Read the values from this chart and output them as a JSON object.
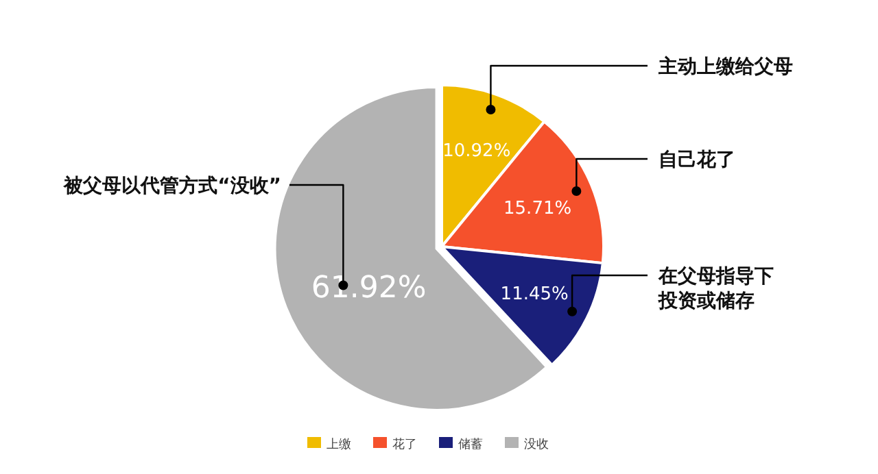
{
  "chart_data": {
    "type": "pie",
    "categories": [
      "上缴",
      "花了",
      "储蓄",
      "没收"
    ],
    "values": [
      10.92,
      15.71,
      11.45,
      61.92
    ],
    "colors": [
      "#f0bc00",
      "#f5512c",
      "#1a1f7a",
      "#b3b3b3"
    ],
    "value_labels": [
      "10.92%",
      "15.71%",
      "11.45%",
      "61.92%"
    ],
    "legend": "bottom",
    "annotations": [
      "主动上缴给父母",
      "自己花了",
      "在父母指导下投资或储存",
      "被父母以代管方式“没收”"
    ]
  }
}
